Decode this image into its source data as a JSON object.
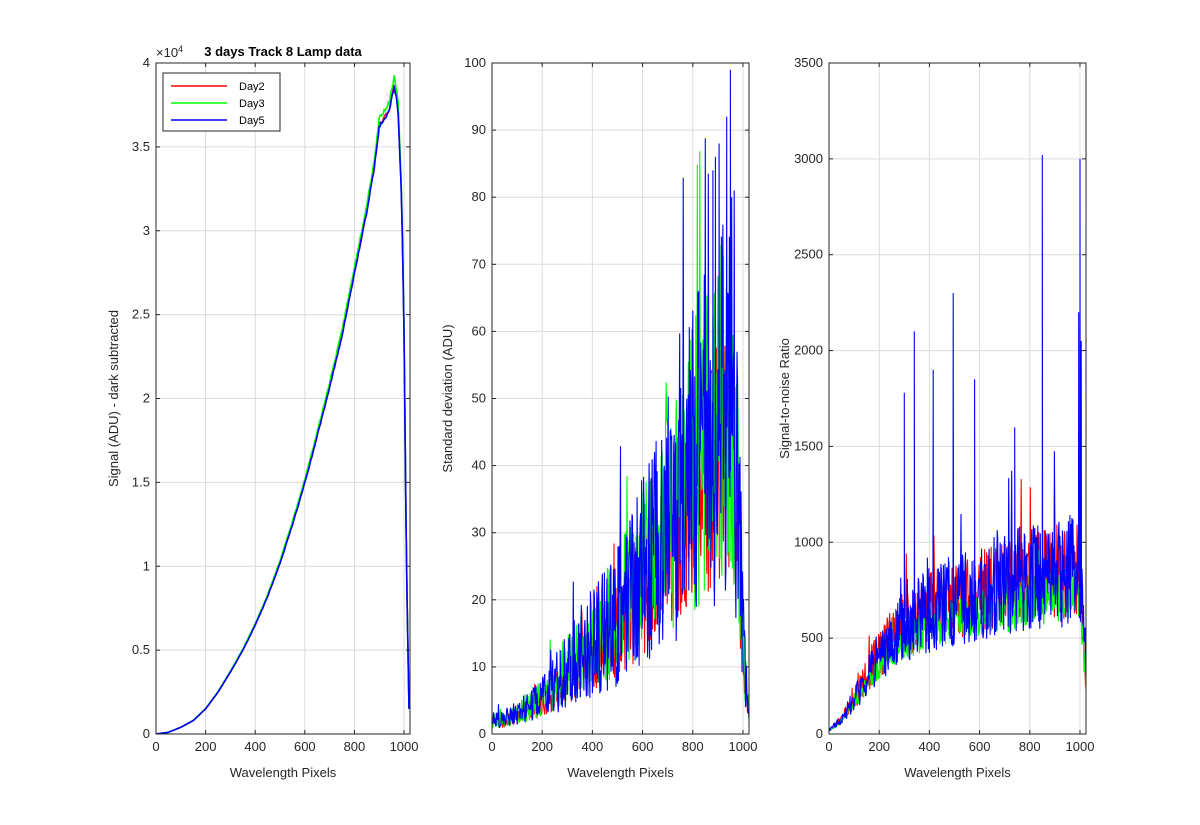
{
  "chart_data": [
    {
      "type": "line",
      "title": "3 days Track 8 Lamp data",
      "xlabel": "Wavelength Pixels",
      "ylabel": "Signal (ADU) - dark subtracted",
      "exponent_label": "×10",
      "exponent_power": "4",
      "xlim": [
        0,
        1024
      ],
      "ylim": [
        0,
        40000
      ],
      "xticks": [
        0,
        200,
        400,
        600,
        800,
        1000
      ],
      "yticks": [
        0,
        5000,
        10000,
        15000,
        20000,
        25000,
        30000,
        35000,
        40000
      ],
      "ytick_labels": [
        "0",
        "0.5",
        "1",
        "1.5",
        "2",
        "2.5",
        "3",
        "3.5",
        "4"
      ],
      "grid": true,
      "legend": "top-left",
      "series": [
        {
          "name": "Day2",
          "color": "#ff0000",
          "noise": 0.006,
          "scale": 1.0,
          "seed": 11
        },
        {
          "name": "Day3",
          "color": "#00ff00",
          "noise": 0.006,
          "scale": 1.012,
          "seed": 23
        },
        {
          "name": "Day5",
          "color": "#0000ff",
          "noise": 0.006,
          "scale": 0.998,
          "seed": 37
        }
      ],
      "x": [
        0,
        50,
        100,
        150,
        200,
        250,
        300,
        350,
        400,
        450,
        500,
        550,
        600,
        650,
        700,
        750,
        800,
        850,
        880,
        900,
        920,
        940,
        960,
        975,
        990,
        1000,
        1010,
        1020
      ],
      "y": [
        0,
        100,
        400,
        800,
        1500,
        2500,
        3700,
        5000,
        6500,
        8200,
        10200,
        12500,
        15000,
        17800,
        20700,
        23800,
        27500,
        31200,
        33800,
        36300,
        36700,
        37200,
        38700,
        37500,
        32000,
        24000,
        10000,
        1500
      ]
    },
    {
      "type": "line",
      "title": "",
      "xlabel": "Wavelength Pixels",
      "ylabel": "Standard deviation (ADU)",
      "xlim": [
        0,
        1024
      ],
      "ylim": [
        0,
        100
      ],
      "xticks": [
        0,
        200,
        400,
        600,
        800,
        1000
      ],
      "yticks": [
        0,
        10,
        20,
        30,
        40,
        50,
        60,
        70,
        80,
        90,
        100
      ],
      "ytick_labels": [
        "0",
        "10",
        "20",
        "30",
        "40",
        "50",
        "60",
        "70",
        "80",
        "90",
        "100"
      ],
      "grid": true,
      "series": [
        {
          "name": "Day2",
          "color": "#ff0000",
          "noise": 0.45,
          "scale": 0.9,
          "seed": 101
        },
        {
          "name": "Day3",
          "color": "#00ff00",
          "noise": 0.55,
          "scale": 1.05,
          "seed": 202
        },
        {
          "name": "Day5",
          "color": "#0000ff",
          "noise": 0.6,
          "scale": 1.05,
          "seed": 303
        }
      ],
      "x": [
        0,
        50,
        100,
        150,
        200,
        250,
        300,
        350,
        400,
        450,
        500,
        550,
        600,
        650,
        700,
        750,
        800,
        850,
        900,
        950,
        975,
        1000,
        1010,
        1024
      ],
      "y": [
        2,
        2,
        3,
        4,
        5,
        7,
        9,
        11,
        13,
        15,
        17,
        20,
        23,
        26,
        30,
        34,
        38,
        42,
        45,
        46,
        40,
        15,
        8,
        2
      ],
      "spikes": [
        [
          950,
          99
        ],
        [
          935,
          92
        ],
        [
          905,
          88
        ],
        [
          890,
          86
        ],
        [
          880,
          84
        ],
        [
          965,
          81
        ],
        [
          955,
          80
        ]
      ]
    },
    {
      "type": "line",
      "title": "",
      "xlabel": "Wavelength Pixels",
      "ylabel": "Signal-to-noise Ratio",
      "xlim": [
        0,
        1024
      ],
      "ylim": [
        0,
        3500
      ],
      "xticks": [
        0,
        200,
        400,
        600,
        800,
        1000
      ],
      "yticks": [
        0,
        500,
        1000,
        1500,
        2000,
        2500,
        3000,
        3500
      ],
      "ytick_labels": [
        "0",
        "500",
        "1000",
        "1500",
        "2000",
        "2500",
        "3000",
        "3500"
      ],
      "grid": true,
      "series": [
        {
          "name": "Day2",
          "color": "#ff0000",
          "noise": 0.3,
          "scale": 1.0,
          "seed": 404
        },
        {
          "name": "Day3",
          "color": "#00ff00",
          "noise": 0.2,
          "scale": 0.85,
          "seed": 505
        },
        {
          "name": "Day5",
          "color": "#0000ff",
          "noise": 0.35,
          "scale": 1.0,
          "seed": 606
        }
      ],
      "x": [
        0,
        50,
        100,
        150,
        200,
        250,
        300,
        350,
        400,
        450,
        500,
        550,
        600,
        650,
        700,
        750,
        800,
        850,
        900,
        950,
        1000,
        1010,
        1024
      ],
      "y": [
        20,
        80,
        180,
        300,
        420,
        500,
        560,
        610,
        650,
        680,
        700,
        720,
        740,
        760,
        780,
        800,
        820,
        830,
        840,
        850,
        860,
        600,
        300
      ],
      "spikes": [
        [
          850,
          3020
        ],
        [
          1000,
          3000
        ],
        [
          340,
          2100
        ],
        [
          495,
          2300
        ],
        [
          995,
          2200
        ],
        [
          1005,
          2050
        ],
        [
          580,
          1850
        ],
        [
          300,
          1780
        ],
        [
          415,
          1900
        ],
        [
          740,
          1600
        ]
      ]
    }
  ]
}
